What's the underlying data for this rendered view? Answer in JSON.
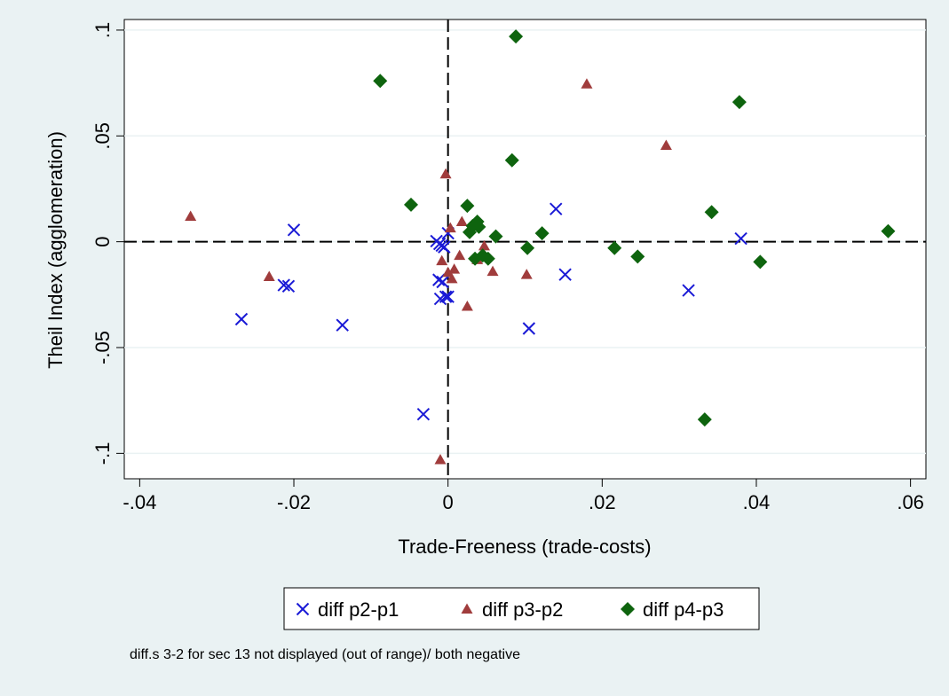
{
  "chart_data": {
    "type": "scatter",
    "title": "",
    "xlabel": "Trade-Freeness (trade-costs)",
    "ylabel": "Theil Index (agglomeration)",
    "xlim": [
      -0.042,
      0.062
    ],
    "ylim": [
      -0.112,
      0.105
    ],
    "xticks": [
      -0.04,
      -0.02,
      0,
      0.02,
      0.04,
      0.06
    ],
    "xtick_labels": [
      "-.04",
      "-.02",
      "0",
      ".02",
      ".04",
      ".06"
    ],
    "yticks": [
      -0.1,
      -0.05,
      0,
      0.05,
      0.1
    ],
    "ytick_labels": [
      "-.1",
      "-.05",
      "0",
      ".05",
      ".1"
    ],
    "reference_lines": {
      "x": 0,
      "y": 0,
      "style": "dashed"
    },
    "grid": "horizontal",
    "legend_position": "bottom",
    "note": "diff.s 3-2 for sec 13 not displayed (out of range)/ both negative",
    "series": [
      {
        "name": "diff p2-p1",
        "marker": "x",
        "color": "#1a1ad6",
        "points": [
          [
            -0.0268,
            -0.0366
          ],
          [
            -0.0213,
            -0.0205
          ],
          [
            -0.0207,
            -0.021
          ],
          [
            -0.02,
            0.0056
          ],
          [
            -0.0137,
            -0.0394
          ],
          [
            -0.0032,
            -0.0815
          ],
          [
            -0.0015,
            0.0003
          ],
          [
            -0.0012,
            -0.018
          ],
          [
            -0.0011,
            -0.001
          ],
          [
            -0.001,
            -0.027
          ],
          [
            -0.0008,
            -0.0018
          ],
          [
            -0.0007,
            -0.019
          ],
          [
            -0.0005,
            -0.0025
          ],
          [
            -0.0003,
            -0.026
          ],
          [
            0.0,
            0.004
          ],
          [
            0.0,
            -0.026
          ],
          [
            0.0105,
            -0.041
          ],
          [
            0.014,
            0.0155
          ],
          [
            0.0152,
            -0.0155
          ],
          [
            0.0312,
            -0.023
          ],
          [
            0.038,
            0.0015
          ]
        ]
      },
      {
        "name": "diff p3-p2",
        "marker": "triangle",
        "color": "#a03c3c",
        "points": [
          [
            -0.0334,
            0.012
          ],
          [
            -0.0232,
            -0.0165
          ],
          [
            -0.001,
            -0.103
          ],
          [
            -0.0008,
            -0.009
          ],
          [
            -0.0003,
            0.032
          ],
          [
            0.0,
            -0.0145
          ],
          [
            0.0003,
            0.0065
          ],
          [
            0.0005,
            -0.0175
          ],
          [
            0.0008,
            -0.013
          ],
          [
            0.0015,
            -0.0065
          ],
          [
            0.0018,
            0.0095
          ],
          [
            0.0025,
            -0.0305
          ],
          [
            0.0038,
            -0.0085
          ],
          [
            0.0047,
            -0.002
          ],
          [
            0.0058,
            -0.014
          ],
          [
            0.0102,
            -0.0155
          ],
          [
            0.018,
            0.0745
          ],
          [
            0.0283,
            0.0455
          ]
        ]
      },
      {
        "name": "diff p4-p3",
        "marker": "diamond",
        "color": "#0e640e",
        "points": [
          [
            -0.0088,
            0.076
          ],
          [
            -0.0048,
            0.0175
          ],
          [
            0.0025,
            0.017
          ],
          [
            0.0028,
            0.0045
          ],
          [
            0.0032,
            0.0075
          ],
          [
            0.0035,
            -0.008
          ],
          [
            0.0038,
            0.0095
          ],
          [
            0.004,
            0.007
          ],
          [
            0.0045,
            -0.0065
          ],
          [
            0.0052,
            -0.008
          ],
          [
            0.0062,
            0.0025
          ],
          [
            0.0083,
            0.0385
          ],
          [
            0.0088,
            0.097
          ],
          [
            0.0103,
            -0.003
          ],
          [
            0.0122,
            0.004
          ],
          [
            0.0216,
            -0.003
          ],
          [
            0.0246,
            -0.007
          ],
          [
            0.0333,
            -0.084
          ],
          [
            0.0342,
            0.014
          ],
          [
            0.0378,
            0.066
          ],
          [
            0.0405,
            -0.0095
          ],
          [
            0.0571,
            0.005
          ]
        ]
      }
    ]
  }
}
